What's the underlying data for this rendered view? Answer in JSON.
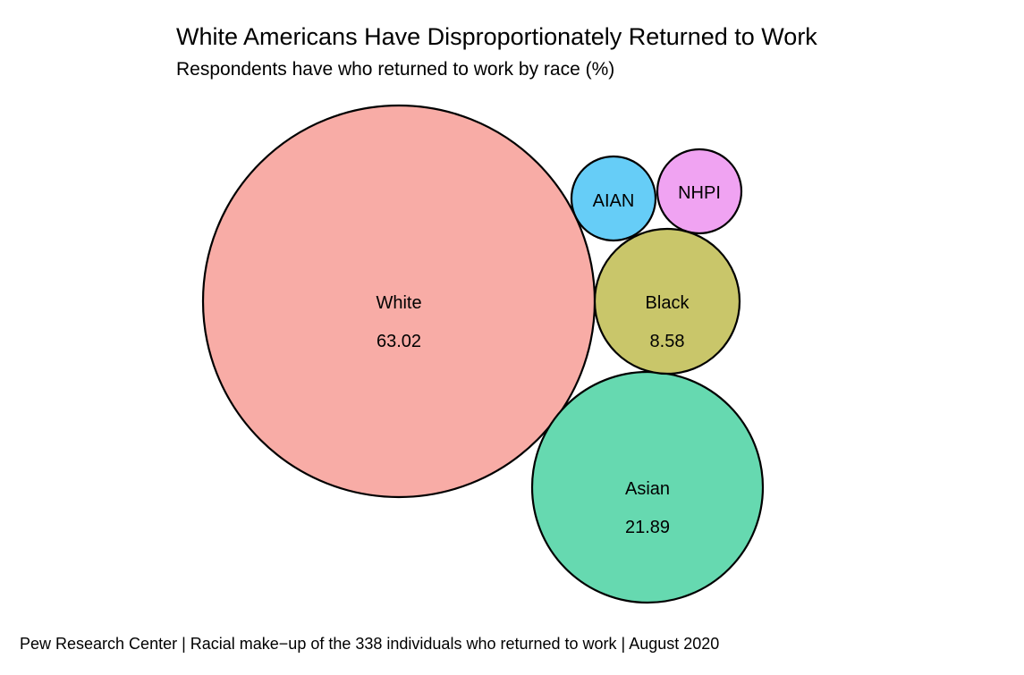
{
  "title": "White Americans Have Disproportionately Returned to Work",
  "subtitle": "Respondents have who returned to work by race (%)",
  "caption": "Pew Research Center | Racial make−up of the 338 individuals who returned to work | August 2020",
  "chart_data": {
    "type": "bubble",
    "title": "White Americans Have Disproportionately Returned to Work",
    "subtitle": "Respondents have who returned to work by race (%)",
    "categories": [
      "White",
      "Asian",
      "Black",
      "AIAN",
      "NHPI"
    ],
    "values": [
      63.02,
      21.89,
      8.58,
      null,
      null
    ],
    "value_labels": [
      "63.02",
      "21.89",
      "8.58",
      "",
      ""
    ],
    "colors": [
      "#F8ACA6",
      "#66D9B0",
      "#C9C66A",
      "#66CDF7",
      "#F0A3F2"
    ],
    "stroke_color": "#000000",
    "grid": false,
    "legend": "none"
  }
}
